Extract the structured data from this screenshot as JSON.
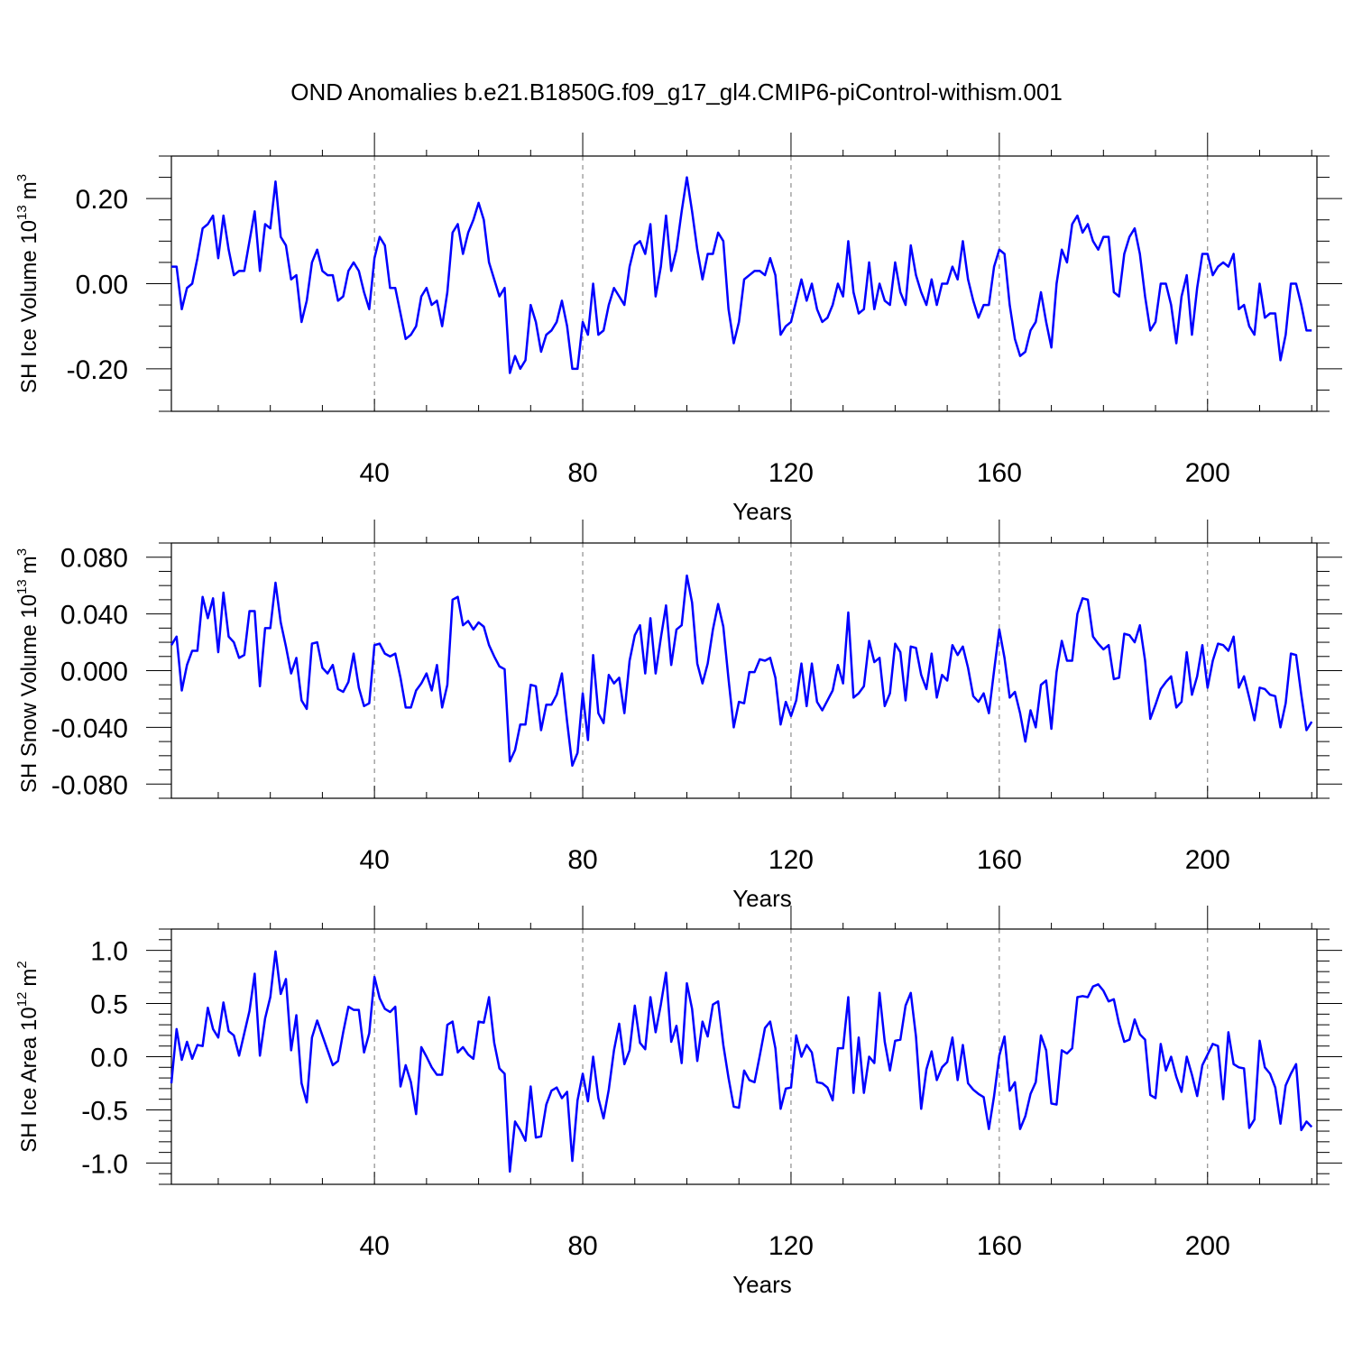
{
  "title": "OND Anomalies b.e21.B1850G.f09_g17_gl4.CMIP6-piControl-withism.001",
  "colors": {
    "series": "#0000ff",
    "grid": "#777777",
    "frame": "#000000"
  },
  "chart_data": [
    {
      "type": "line",
      "panel": "ice-volume",
      "ylabel_main": "SH Ice Volume 10",
      "ylabel_sup": "13",
      "ylabel_unit": "m",
      "ylabel_unit_sup": "3",
      "xlabel": "Years",
      "xlim": [
        1,
        221
      ],
      "ylim": [
        -0.3,
        0.3
      ],
      "x_ticks": [
        40,
        80,
        120,
        160,
        200
      ],
      "x_tick_labels": [
        "40",
        "80",
        "120",
        "160",
        "200"
      ],
      "y_ticks": [
        -0.2,
        0.0,
        0.2
      ],
      "y_tick_labels": [
        "-0.20",
        "0.00",
        "0.20"
      ],
      "y_minor_step": 0.05,
      "x_start": 1,
      "series": [
        {
          "name": "SH Ice Volume",
          "values": [
            0.04,
            0.04,
            -0.06,
            -0.01,
            0.0,
            0.06,
            0.13,
            0.14,
            0.16,
            0.06,
            0.16,
            0.08,
            0.02,
            0.03,
            0.03,
            0.1,
            0.17,
            0.03,
            0.14,
            0.13,
            0.24,
            0.11,
            0.09,
            0.01,
            0.02,
            -0.09,
            -0.04,
            0.05,
            0.08,
            0.03,
            0.02,
            0.02,
            -0.04,
            -0.03,
            0.03,
            0.05,
            0.03,
            -0.02,
            -0.06,
            0.06,
            0.11,
            0.09,
            -0.01,
            -0.01,
            -0.07,
            -0.13,
            -0.12,
            -0.1,
            -0.03,
            -0.01,
            -0.05,
            -0.04,
            -0.1,
            -0.02,
            0.12,
            0.14,
            0.07,
            0.12,
            0.15,
            0.19,
            0.15,
            0.05,
            0.01,
            -0.03,
            -0.01,
            -0.21,
            -0.17,
            -0.2,
            -0.18,
            -0.05,
            -0.09,
            -0.16,
            -0.12,
            -0.11,
            -0.09,
            -0.04,
            -0.1,
            -0.2,
            -0.2,
            -0.09,
            -0.12,
            0.0,
            -0.12,
            -0.11,
            -0.05,
            -0.01,
            -0.03,
            -0.05,
            0.04,
            0.09,
            0.1,
            0.07,
            0.14,
            -0.03,
            0.04,
            0.16,
            0.03,
            0.08,
            0.17,
            0.25,
            0.17,
            0.08,
            0.01,
            0.07,
            0.07,
            0.12,
            0.1,
            -0.06,
            -0.14,
            -0.09,
            0.01,
            0.02,
            0.03,
            0.03,
            0.02,
            0.06,
            0.02,
            -0.12,
            -0.1,
            -0.09,
            -0.04,
            0.01,
            -0.04,
            0.0,
            -0.06,
            -0.09,
            -0.08,
            -0.05,
            0.0,
            -0.03,
            0.1,
            -0.02,
            -0.07,
            -0.06,
            0.05,
            -0.06,
            0.0,
            -0.04,
            -0.05,
            0.05,
            -0.02,
            -0.05,
            0.09,
            0.02,
            -0.02,
            -0.05,
            0.01,
            -0.05,
            0.0,
            0.0,
            0.04,
            0.01,
            0.1,
            0.01,
            -0.04,
            -0.08,
            -0.05,
            -0.05,
            0.04,
            0.08,
            0.07,
            -0.05,
            -0.13,
            -0.17,
            -0.16,
            -0.11,
            -0.09,
            -0.02,
            -0.09,
            -0.15,
            0.0,
            0.08,
            0.05,
            0.14,
            0.16,
            0.12,
            0.14,
            0.1,
            0.08,
            0.11,
            0.11,
            -0.02,
            -0.03,
            0.07,
            0.11,
            0.13,
            0.07,
            -0.03,
            -0.11,
            -0.09,
            0.0,
            0.0,
            -0.05,
            -0.14,
            -0.03,
            0.02,
            -0.12,
            -0.01,
            0.07,
            0.07,
            0.02,
            0.04,
            0.05,
            0.04,
            0.07,
            -0.06,
            -0.05,
            -0.1,
            -0.12,
            0.0,
            -0.08,
            -0.07,
            -0.07,
            -0.18,
            -0.12,
            0.0,
            0.0,
            -0.05,
            -0.11,
            -0.11
          ]
        }
      ]
    },
    {
      "type": "line",
      "panel": "snow-volume",
      "ylabel_main": "SH Snow Volume 10",
      "ylabel_sup": "13",
      "ylabel_unit": "m",
      "ylabel_unit_sup": "3",
      "xlabel": "Years",
      "xlim": [
        1,
        221
      ],
      "ylim": [
        -0.09,
        0.09
      ],
      "x_ticks": [
        40,
        80,
        120,
        160,
        200
      ],
      "x_tick_labels": [
        "40",
        "80",
        "120",
        "160",
        "200"
      ],
      "y_ticks": [
        -0.08,
        -0.04,
        0.0,
        0.04,
        0.08
      ],
      "y_tick_labels": [
        "-0.080",
        "-0.040",
        "0.000",
        "0.040",
        "0.080"
      ],
      "y_minor_step": 0.01,
      "x_start": 1,
      "series": [
        {
          "name": "SH Snow Volume",
          "values": [
            0.018,
            0.024,
            -0.014,
            0.004,
            0.014,
            0.014,
            0.052,
            0.037,
            0.051,
            0.013,
            0.055,
            0.024,
            0.02,
            0.009,
            0.011,
            0.042,
            0.042,
            -0.011,
            0.03,
            0.03,
            0.062,
            0.034,
            0.017,
            -0.002,
            0.009,
            -0.021,
            -0.027,
            0.019,
            0.02,
            0.002,
            -0.002,
            0.004,
            -0.013,
            -0.015,
            -0.008,
            0.012,
            -0.012,
            -0.025,
            -0.023,
            0.018,
            0.019,
            0.012,
            0.01,
            0.012,
            -0.005,
            -0.026,
            -0.026,
            -0.014,
            -0.009,
            -0.002,
            -0.014,
            0.004,
            -0.026,
            -0.01,
            0.05,
            0.052,
            0.032,
            0.035,
            0.029,
            0.034,
            0.031,
            0.018,
            0.01,
            0.003,
            0.001,
            -0.064,
            -0.056,
            -0.038,
            -0.038,
            -0.01,
            -0.011,
            -0.042,
            -0.024,
            -0.024,
            -0.017,
            -0.002,
            -0.036,
            -0.067,
            -0.058,
            -0.016,
            -0.049,
            0.011,
            -0.03,
            -0.037,
            -0.003,
            -0.009,
            -0.005,
            -0.03,
            0.007,
            0.025,
            0.032,
            -0.002,
            0.037,
            -0.002,
            0.023,
            0.046,
            0.004,
            0.029,
            0.032,
            0.067,
            0.048,
            0.005,
            -0.009,
            0.005,
            0.029,
            0.047,
            0.031,
            -0.006,
            -0.04,
            -0.022,
            -0.023,
            -0.001,
            -0.001,
            0.008,
            0.007,
            0.009,
            -0.005,
            -0.038,
            -0.022,
            -0.032,
            -0.021,
            0.005,
            -0.025,
            0.005,
            -0.022,
            -0.028,
            -0.021,
            -0.014,
            0.004,
            -0.009,
            0.041,
            -0.019,
            -0.016,
            -0.011,
            0.021,
            0.006,
            0.009,
            -0.025,
            -0.016,
            0.019,
            0.013,
            -0.021,
            0.017,
            0.016,
            -0.003,
            -0.013,
            0.012,
            -0.019,
            -0.003,
            -0.007,
            0.018,
            0.011,
            0.017,
            0.002,
            -0.018,
            -0.022,
            -0.016,
            -0.03,
            0.0,
            0.029,
            0.009,
            -0.019,
            -0.015,
            -0.03,
            -0.05,
            -0.028,
            -0.04,
            -0.01,
            -0.007,
            -0.041,
            -0.001,
            0.021,
            0.007,
            0.007,
            0.04,
            0.051,
            0.05,
            0.024,
            0.019,
            0.015,
            0.018,
            -0.006,
            -0.005,
            0.026,
            0.025,
            0.02,
            0.032,
            0.007,
            -0.034,
            -0.024,
            -0.013,
            -0.008,
            -0.004,
            -0.026,
            -0.022,
            0.013,
            -0.017,
            -0.004,
            0.018,
            -0.012,
            0.007,
            0.019,
            0.018,
            0.014,
            0.024,
            -0.012,
            -0.004,
            -0.019,
            -0.035,
            -0.012,
            -0.013,
            -0.017,
            -0.018,
            -0.04,
            -0.023,
            0.012,
            0.011,
            -0.017,
            -0.042,
            -0.036
          ]
        }
      ]
    },
    {
      "type": "line",
      "panel": "ice-area",
      "ylabel_main": "SH Ice Area 10",
      "ylabel_sup": "12",
      "ylabel_unit": "m",
      "ylabel_unit_sup": "2",
      "xlabel": "Years",
      "xlim": [
        1,
        221
      ],
      "ylim": [
        -1.2,
        1.2
      ],
      "x_ticks": [
        40,
        80,
        120,
        160,
        200
      ],
      "x_tick_labels": [
        "40",
        "80",
        "120",
        "160",
        "200"
      ],
      "y_ticks": [
        -1.0,
        -0.5,
        0.0,
        0.5,
        1.0
      ],
      "y_tick_labels": [
        "-1.0",
        "-0.5",
        "0.0",
        "0.5",
        "1.0"
      ],
      "y_minor_step": 0.1,
      "x_start": 1,
      "series": [
        {
          "name": "SH Ice Area",
          "values": [
            -0.25,
            0.26,
            -0.03,
            0.14,
            -0.02,
            0.11,
            0.1,
            0.46,
            0.26,
            0.18,
            0.51,
            0.24,
            0.2,
            0.01,
            0.22,
            0.43,
            0.78,
            0.01,
            0.36,
            0.56,
            0.99,
            0.59,
            0.73,
            0.06,
            0.39,
            -0.25,
            -0.43,
            0.18,
            0.34,
            0.2,
            0.06,
            -0.08,
            -0.04,
            0.23,
            0.47,
            0.44,
            0.44,
            0.04,
            0.22,
            0.75,
            0.55,
            0.45,
            0.42,
            0.47,
            -0.28,
            -0.08,
            -0.24,
            -0.54,
            0.09,
            0.0,
            -0.1,
            -0.17,
            -0.17,
            0.3,
            0.33,
            0.04,
            0.09,
            0.02,
            -0.02,
            0.33,
            0.32,
            0.56,
            0.13,
            -0.11,
            -0.16,
            -1.08,
            -0.61,
            -0.69,
            -0.79,
            -0.28,
            -0.76,
            -0.75,
            -0.45,
            -0.32,
            -0.29,
            -0.39,
            -0.33,
            -0.98,
            -0.41,
            -0.16,
            -0.42,
            0.0,
            -0.39,
            -0.58,
            -0.31,
            0.06,
            0.31,
            -0.07,
            0.06,
            0.48,
            0.13,
            0.07,
            0.56,
            0.23,
            0.49,
            0.79,
            0.14,
            0.29,
            -0.06,
            0.69,
            0.45,
            -0.04,
            0.33,
            0.19,
            0.49,
            0.52,
            0.11,
            -0.2,
            -0.47,
            -0.48,
            -0.13,
            -0.22,
            -0.24,
            0.01,
            0.27,
            0.33,
            0.08,
            -0.49,
            -0.3,
            -0.29,
            0.2,
            0.0,
            0.11,
            0.04,
            -0.24,
            -0.25,
            -0.29,
            -0.41,
            0.08,
            0.08,
            0.56,
            -0.34,
            0.18,
            -0.34,
            0.0,
            -0.06,
            0.6,
            0.14,
            -0.13,
            0.15,
            0.16,
            0.48,
            0.6,
            0.19,
            -0.49,
            -0.12,
            0.05,
            -0.22,
            -0.1,
            -0.05,
            0.18,
            -0.22,
            0.11,
            -0.25,
            -0.31,
            -0.35,
            -0.38,
            -0.68,
            -0.37,
            0.01,
            0.19,
            -0.32,
            -0.24,
            -0.68,
            -0.56,
            -0.35,
            -0.24,
            0.2,
            0.06,
            -0.44,
            -0.45,
            0.06,
            0.03,
            0.08,
            0.56,
            0.57,
            0.56,
            0.66,
            0.68,
            0.62,
            0.52,
            0.54,
            0.31,
            0.14,
            0.16,
            0.35,
            0.21,
            0.16,
            -0.36,
            -0.39,
            0.12,
            -0.13,
            0.0,
            -0.19,
            -0.33,
            0.0,
            -0.17,
            -0.37,
            -0.08,
            0.02,
            0.12,
            0.1,
            -0.4,
            0.23,
            -0.07,
            -0.1,
            -0.11,
            -0.67,
            -0.59,
            0.15,
            -0.1,
            -0.16,
            -0.29,
            -0.63,
            -0.27,
            -0.16,
            -0.07,
            -0.69,
            -0.61,
            -0.66
          ]
        }
      ]
    }
  ]
}
